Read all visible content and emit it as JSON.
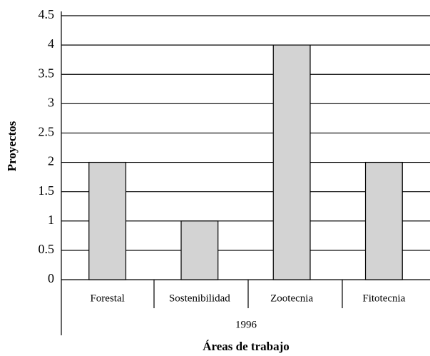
{
  "chart_data": {
    "type": "bar",
    "categories": [
      "Forestal",
      "Sostenibilidad",
      "Zootecnia",
      "Fitotecnia"
    ],
    "values": [
      2,
      1,
      4,
      2
    ],
    "color": "#d3d3d3",
    "group_label": "1996",
    "xlabel": "Áreas de trabajo",
    "ylabel": "Proyectos",
    "ylim": [
      0,
      4.5
    ],
    "yticks": [
      0,
      0.5,
      1,
      1.5,
      2,
      2.5,
      3,
      3.5,
      4,
      4.5
    ],
    "grid": true
  }
}
